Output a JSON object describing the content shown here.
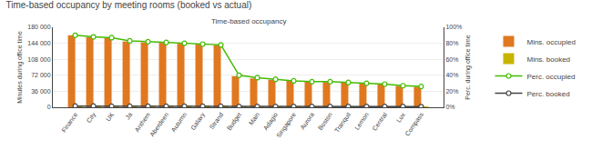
{
  "chart_data": {
    "type": "bar",
    "title": "Time-based occupancy by meeting rooms (booked vs actual)",
    "subtitle": "Time-based occupancy",
    "ylabel": "Minutes during office time",
    "y2label": "Perc. during office time",
    "categories": [
      "Finance",
      "City",
      "UK",
      "Ja",
      "Anthem",
      "Aberdeen",
      "Autumn",
      "Galaxy",
      "Strand",
      "Budget",
      "Main",
      "Adagio",
      "Singapore",
      "Aurora",
      "Boston",
      "Tranquil",
      "Lemon",
      "Central",
      "Lux",
      "Compass"
    ],
    "series": [
      {
        "name": "Mins. occupied",
        "type": "bar",
        "color": "#E07820",
        "values": [
          162000,
          158000,
          156000,
          148000,
          146000,
          145000,
          143000,
          142000,
          140000,
          70000,
          65000,
          62000,
          60000,
          58000,
          57000,
          56000,
          55000,
          52000,
          48000,
          46000
        ]
      },
      {
        "name": "Mins. booked",
        "type": "bar",
        "color": "#C8B400",
        "values": [
          2500,
          2500,
          2200,
          2200,
          2200,
          2200,
          2200,
          2200,
          2200,
          1800,
          1800,
          1800,
          1800,
          1800,
          1800,
          1800,
          1600,
          1600,
          1600,
          1400
        ]
      },
      {
        "name": "Perc. occupied",
        "type": "line",
        "axis": "y2",
        "color": "#44BB00",
        "marker": "circle",
        "values": [
          0.9,
          0.88,
          0.87,
          0.83,
          0.82,
          0.81,
          0.8,
          0.79,
          0.78,
          0.4,
          0.37,
          0.35,
          0.33,
          0.32,
          0.32,
          0.31,
          0.3,
          0.29,
          0.27,
          0.26
        ]
      },
      {
        "name": "Perc. booked",
        "type": "line",
        "axis": "y2",
        "color": "#444444",
        "marker": "circle",
        "values": [
          0.015,
          0.015,
          0.013,
          0.013,
          0.013,
          0.013,
          0.013,
          0.013,
          0.013,
          0.01,
          0.01,
          0.01,
          0.01,
          0.01,
          0.01,
          0.01,
          0.009,
          0.009,
          0.009,
          0.008
        ]
      }
    ],
    "ylim": [
      0,
      180000
    ],
    "yticks": [
      0,
      {
        "value": 36000,
        "label": "36 000"
      },
      {
        "value": 72000,
        "label": "72 000"
      },
      {
        "value": 108000,
        "label": "108 000"
      },
      {
        "value": 144000,
        "label": "144 000"
      },
      {
        "value": 180000,
        "label": "180 000"
      }
    ],
    "y2lim": [
      0,
      1.0
    ],
    "y2ticks": [
      {
        "value": 0.0,
        "label": "0%"
      },
      {
        "value": 0.2,
        "label": "20%"
      },
      {
        "value": 0.4,
        "label": "40%"
      },
      {
        "value": 0.6,
        "label": "60%"
      },
      {
        "value": 0.8,
        "label": "80%"
      },
      {
        "value": 1.0,
        "label": "100%"
      }
    ],
    "grid": true,
    "legend": "right"
  }
}
